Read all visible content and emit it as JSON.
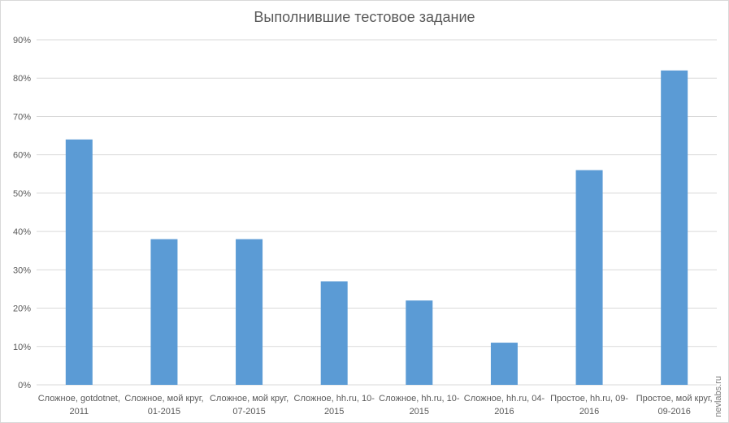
{
  "chart_data": {
    "type": "bar",
    "title": "Выполнившие тестовое задание",
    "categories": [
      [
        "Сложное, gotdotnet,",
        "2011"
      ],
      [
        "Сложное, мой круг,",
        "01-2015"
      ],
      [
        "Сложное, мой круг,",
        "07-2015"
      ],
      [
        "Сложное, hh.ru, 10-",
        "2015"
      ],
      [
        "Сложное, hh.ru, 10-",
        "2015"
      ],
      [
        "Сложное, hh.ru, 04-",
        "2016"
      ],
      [
        "Простое, hh.ru, 09-",
        "2016"
      ],
      [
        "Простое, мой круг,",
        "09-2016"
      ]
    ],
    "values": [
      64,
      38,
      38,
      27,
      22,
      11,
      56,
      82
    ],
    "ylim": [
      0,
      90
    ],
    "yticks": [
      "0%",
      "10%",
      "20%",
      "30%",
      "40%",
      "50%",
      "60%",
      "70%",
      "80%",
      "90%"
    ],
    "bar_color": "#5b9bd5",
    "grid_color": "#d9d9d9",
    "grid": true
  },
  "watermark": "nevlabs.ru"
}
